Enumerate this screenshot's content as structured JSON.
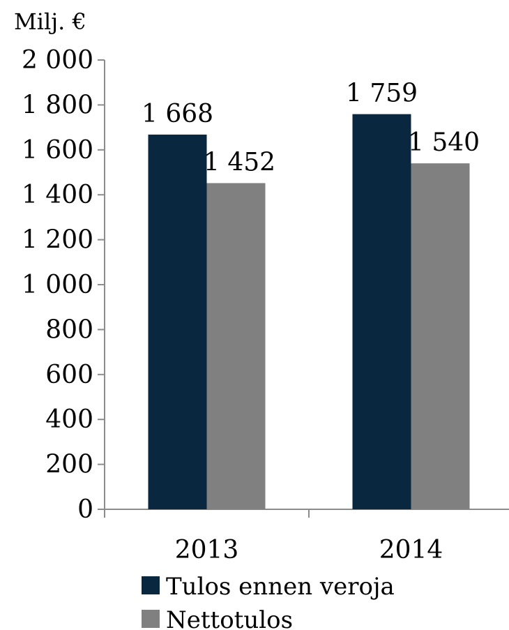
{
  "chart_data": {
    "type": "bar",
    "unit_label": "Milj. €",
    "categories": [
      "2013",
      "2014"
    ],
    "series": [
      {
        "name": "Tulos ennen veroja",
        "color": "#0a2740",
        "values": [
          1668,
          1759
        ],
        "labels": [
          "1 668",
          "1 759"
        ]
      },
      {
        "name": "Nettotulos",
        "color": "#808080",
        "values": [
          1452,
          1540
        ],
        "labels": [
          "1 452",
          "1 540"
        ]
      }
    ],
    "ylim": [
      0,
      2000
    ],
    "yticks": [
      0,
      200,
      400,
      600,
      800,
      1000,
      1200,
      1400,
      1600,
      1800,
      2000
    ],
    "ytick_labels": [
      "0",
      "200",
      "400",
      "600",
      "800",
      "1 000",
      "1 200",
      "1 400",
      "1 600",
      "1 800",
      "2 000"
    ],
    "grid": false,
    "legend_position": "bottom"
  }
}
